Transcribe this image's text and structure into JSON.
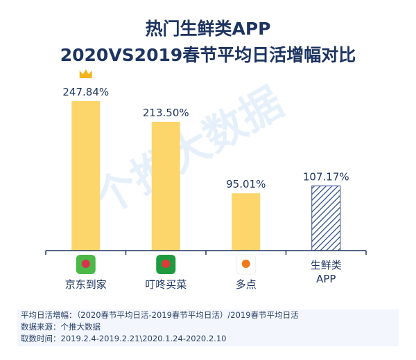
{
  "title_line1": "热门生鲜类APP",
  "title_line2": "2020VS2019春节平均日活增幅对比",
  "watermark": "个推大数据",
  "colors": {
    "bar": "#fcd66b",
    "hatch": "#2b4a86",
    "axis": "#1d3461",
    "text": "#1d3461"
  },
  "chart_data": {
    "type": "bar",
    "categories": [
      "京东到家",
      "叮咚买菜",
      "多点",
      "生鲜类\nAPP"
    ],
    "values": [
      247.84,
      213.5,
      95.01,
      107.17
    ],
    "data_labels": [
      "247.84%",
      "213.50%",
      "95.01%",
      "107.17%"
    ],
    "icons": [
      "crown-icon",
      "jd-daojia-app-icon",
      "dingdong-app-icon",
      "duodian-app-icon"
    ],
    "hatched": [
      false,
      false,
      false,
      true
    ],
    "ylim": [
      0,
      260
    ],
    "grid": false
  },
  "footnote": [
    "平均日活增幅：（2020春节平均日活-2019春节平均日活）/2019春节平均日活",
    "数据来源：个推大数据",
    "取数时间：2019.2.4-2019.2.21\\2020.1.24-2020.2.10"
  ]
}
